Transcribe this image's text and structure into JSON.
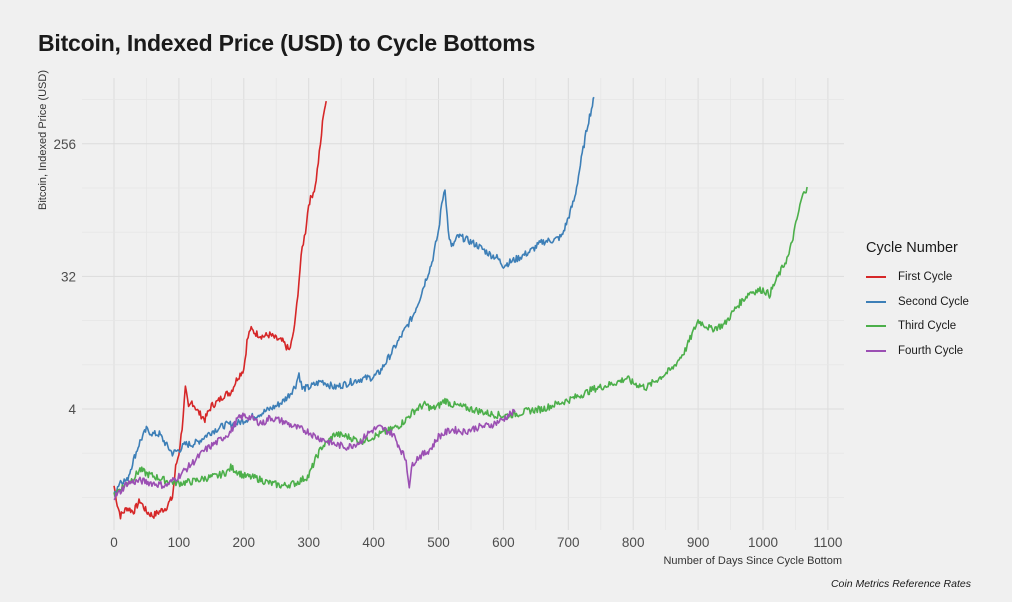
{
  "chart_data": {
    "type": "line",
    "title": "Bitcoin, Indexed Price (USD) to Cycle Bottoms",
    "xlabel": "Number of Days Since Cycle Bottom",
    "ylabel": "Bitcoin, Indexed Price (USD)",
    "y_scale": "log2",
    "xlim": [
      -50,
      1120
    ],
    "ylim": [
      0.42,
      550
    ],
    "x_ticks": [
      0,
      100,
      200,
      300,
      400,
      500,
      600,
      700,
      800,
      900,
      1000,
      1100
    ],
    "y_ticks": [
      4,
      32,
      256
    ],
    "grid": true,
    "legend": {
      "title": "Cycle Number",
      "position": "right"
    },
    "source": "Coin Metrics Reference Rates",
    "series": [
      {
        "name": "First Cycle",
        "color": "#d62728",
        "points": [
          [
            0,
            1.2
          ],
          [
            5,
            0.9
          ],
          [
            10,
            0.75
          ],
          [
            20,
            0.85
          ],
          [
            30,
            0.8
          ],
          [
            40,
            0.95
          ],
          [
            50,
            0.8
          ],
          [
            60,
            0.75
          ],
          [
            70,
            0.8
          ],
          [
            80,
            0.85
          ],
          [
            90,
            1.0
          ],
          [
            95,
            1.6
          ],
          [
            100,
            2.0
          ],
          [
            105,
            3.0
          ],
          [
            110,
            5.5
          ],
          [
            115,
            4.0
          ],
          [
            120,
            4.5
          ],
          [
            130,
            3.8
          ],
          [
            140,
            3.4
          ],
          [
            150,
            4.2
          ],
          [
            160,
            4.5
          ],
          [
            170,
            5.0
          ],
          [
            180,
            5.2
          ],
          [
            190,
            6.5
          ],
          [
            200,
            7.5
          ],
          [
            205,
            11.5
          ],
          [
            210,
            14.0
          ],
          [
            220,
            13.0
          ],
          [
            230,
            12.5
          ],
          [
            240,
            12.8
          ],
          [
            250,
            12.0
          ],
          [
            260,
            11.5
          ],
          [
            270,
            10.0
          ],
          [
            275,
            12.0
          ],
          [
            280,
            17
          ],
          [
            285,
            30
          ],
          [
            290,
            50
          ],
          [
            295,
            65
          ],
          [
            300,
            100
          ],
          [
            310,
            130
          ],
          [
            318,
            250
          ],
          [
            323,
            420
          ],
          [
            327,
            500
          ]
        ]
      },
      {
        "name": "Second Cycle",
        "color": "#3d7fb7",
        "points": [
          [
            0,
            1.05
          ],
          [
            10,
            1.3
          ],
          [
            20,
            1.3
          ],
          [
            30,
            1.8
          ],
          [
            40,
            2.4
          ],
          [
            50,
            2.9
          ],
          [
            55,
            2.8
          ],
          [
            60,
            2.7
          ],
          [
            70,
            2.7
          ],
          [
            80,
            2.3
          ],
          [
            90,
            2.0
          ],
          [
            100,
            2.1
          ],
          [
            110,
            2.3
          ],
          [
            120,
            2.3
          ],
          [
            130,
            2.4
          ],
          [
            140,
            2.6
          ],
          [
            150,
            2.8
          ],
          [
            170,
            3.1
          ],
          [
            190,
            3.2
          ],
          [
            210,
            3.5
          ],
          [
            230,
            3.8
          ],
          [
            250,
            4.2
          ],
          [
            260,
            4.5
          ],
          [
            270,
            5.0
          ],
          [
            280,
            5.8
          ],
          [
            285,
            7.0
          ],
          [
            290,
            5.5
          ],
          [
            300,
            5.6
          ],
          [
            320,
            6.2
          ],
          [
            340,
            5.6
          ],
          [
            360,
            6.0
          ],
          [
            380,
            6.4
          ],
          [
            400,
            6.6
          ],
          [
            410,
            7.2
          ],
          [
            420,
            8.5
          ],
          [
            440,
            12
          ],
          [
            460,
            17
          ],
          [
            470,
            22
          ],
          [
            480,
            30
          ],
          [
            490,
            40
          ],
          [
            500,
            65
          ],
          [
            505,
            100
          ],
          [
            510,
            130
          ],
          [
            515,
            65
          ],
          [
            520,
            50
          ],
          [
            530,
            60
          ],
          [
            540,
            58
          ],
          [
            560,
            52
          ],
          [
            580,
            45
          ],
          [
            590,
            43
          ],
          [
            600,
            38
          ],
          [
            610,
            40
          ],
          [
            620,
            42
          ],
          [
            640,
            47
          ],
          [
            660,
            55
          ],
          [
            680,
            57
          ],
          [
            690,
            60
          ],
          [
            700,
            80
          ],
          [
            710,
            110
          ],
          [
            720,
            200
          ],
          [
            730,
            350
          ],
          [
            740,
            530
          ]
        ]
      },
      {
        "name": "Third Cycle",
        "color": "#4caf4a",
        "points": [
          [
            0,
            1.05
          ],
          [
            10,
            1.15
          ],
          [
            20,
            1.25
          ],
          [
            30,
            1.35
          ],
          [
            40,
            1.55
          ],
          [
            50,
            1.45
          ],
          [
            60,
            1.4
          ],
          [
            80,
            1.3
          ],
          [
            100,
            1.25
          ],
          [
            120,
            1.28
          ],
          [
            140,
            1.35
          ],
          [
            160,
            1.4
          ],
          [
            175,
            1.5
          ],
          [
            180,
            1.6
          ],
          [
            190,
            1.5
          ],
          [
            200,
            1.4
          ],
          [
            220,
            1.35
          ],
          [
            240,
            1.25
          ],
          [
            260,
            1.2
          ],
          [
            280,
            1.25
          ],
          [
            300,
            1.4
          ],
          [
            310,
            1.8
          ],
          [
            320,
            2.2
          ],
          [
            330,
            2.4
          ],
          [
            340,
            2.7
          ],
          [
            360,
            2.6
          ],
          [
            380,
            2.4
          ],
          [
            400,
            2.6
          ],
          [
            420,
            2.8
          ],
          [
            440,
            3.1
          ],
          [
            450,
            3.4
          ],
          [
            460,
            3.8
          ],
          [
            470,
            4.1
          ],
          [
            480,
            4.3
          ],
          [
            490,
            4.0
          ],
          [
            500,
            4.2
          ],
          [
            510,
            4.6
          ],
          [
            520,
            4.3
          ],
          [
            540,
            4.1
          ],
          [
            560,
            3.9
          ],
          [
            580,
            3.7
          ],
          [
            600,
            3.6
          ],
          [
            620,
            3.7
          ],
          [
            640,
            3.9
          ],
          [
            660,
            4.0
          ],
          [
            680,
            4.3
          ],
          [
            700,
            4.6
          ],
          [
            720,
            5.0
          ],
          [
            740,
            5.5
          ],
          [
            760,
            5.8
          ],
          [
            780,
            6.2
          ],
          [
            790,
            6.5
          ],
          [
            800,
            6.0
          ],
          [
            810,
            5.8
          ],
          [
            820,
            5.6
          ],
          [
            840,
            6.5
          ],
          [
            860,
            7.5
          ],
          [
            880,
            10
          ],
          [
            900,
            16
          ],
          [
            920,
            14
          ],
          [
            940,
            15
          ],
          [
            960,
            20
          ],
          [
            980,
            25
          ],
          [
            1000,
            26
          ],
          [
            1010,
            24
          ],
          [
            1020,
            30
          ],
          [
            1040,
            45
          ],
          [
            1060,
            110
          ],
          [
            1068,
            130
          ]
        ]
      },
      {
        "name": "Fourth Cycle",
        "color": "#9b4fb3",
        "points": [
          [
            0,
            1.0
          ],
          [
            10,
            1.1
          ],
          [
            20,
            1.25
          ],
          [
            40,
            1.3
          ],
          [
            60,
            1.25
          ],
          [
            80,
            1.2
          ],
          [
            100,
            1.4
          ],
          [
            120,
            1.7
          ],
          [
            140,
            2.1
          ],
          [
            160,
            2.4
          ],
          [
            180,
            2.8
          ],
          [
            190,
            3.4
          ],
          [
            200,
            3.6
          ],
          [
            210,
            3.5
          ],
          [
            220,
            3.3
          ],
          [
            230,
            3.2
          ],
          [
            240,
            3.5
          ],
          [
            260,
            3.3
          ],
          [
            280,
            3.0
          ],
          [
            300,
            2.8
          ],
          [
            310,
            2.6
          ],
          [
            320,
            2.5
          ],
          [
            330,
            2.4
          ],
          [
            340,
            2.3
          ],
          [
            360,
            2.2
          ],
          [
            380,
            2.4
          ],
          [
            390,
            2.7
          ],
          [
            400,
            2.9
          ],
          [
            410,
            3.0
          ],
          [
            430,
            2.7
          ],
          [
            440,
            2.2
          ],
          [
            450,
            1.8
          ],
          [
            455,
            1.2
          ],
          [
            460,
            1.7
          ],
          [
            470,
            1.9
          ],
          [
            480,
            2.0
          ],
          [
            490,
            2.2
          ],
          [
            500,
            2.6
          ],
          [
            520,
            2.9
          ],
          [
            540,
            2.8
          ],
          [
            560,
            3.0
          ],
          [
            580,
            3.1
          ],
          [
            600,
            3.4
          ],
          [
            610,
            3.7
          ],
          [
            618,
            3.8
          ]
        ]
      }
    ]
  }
}
